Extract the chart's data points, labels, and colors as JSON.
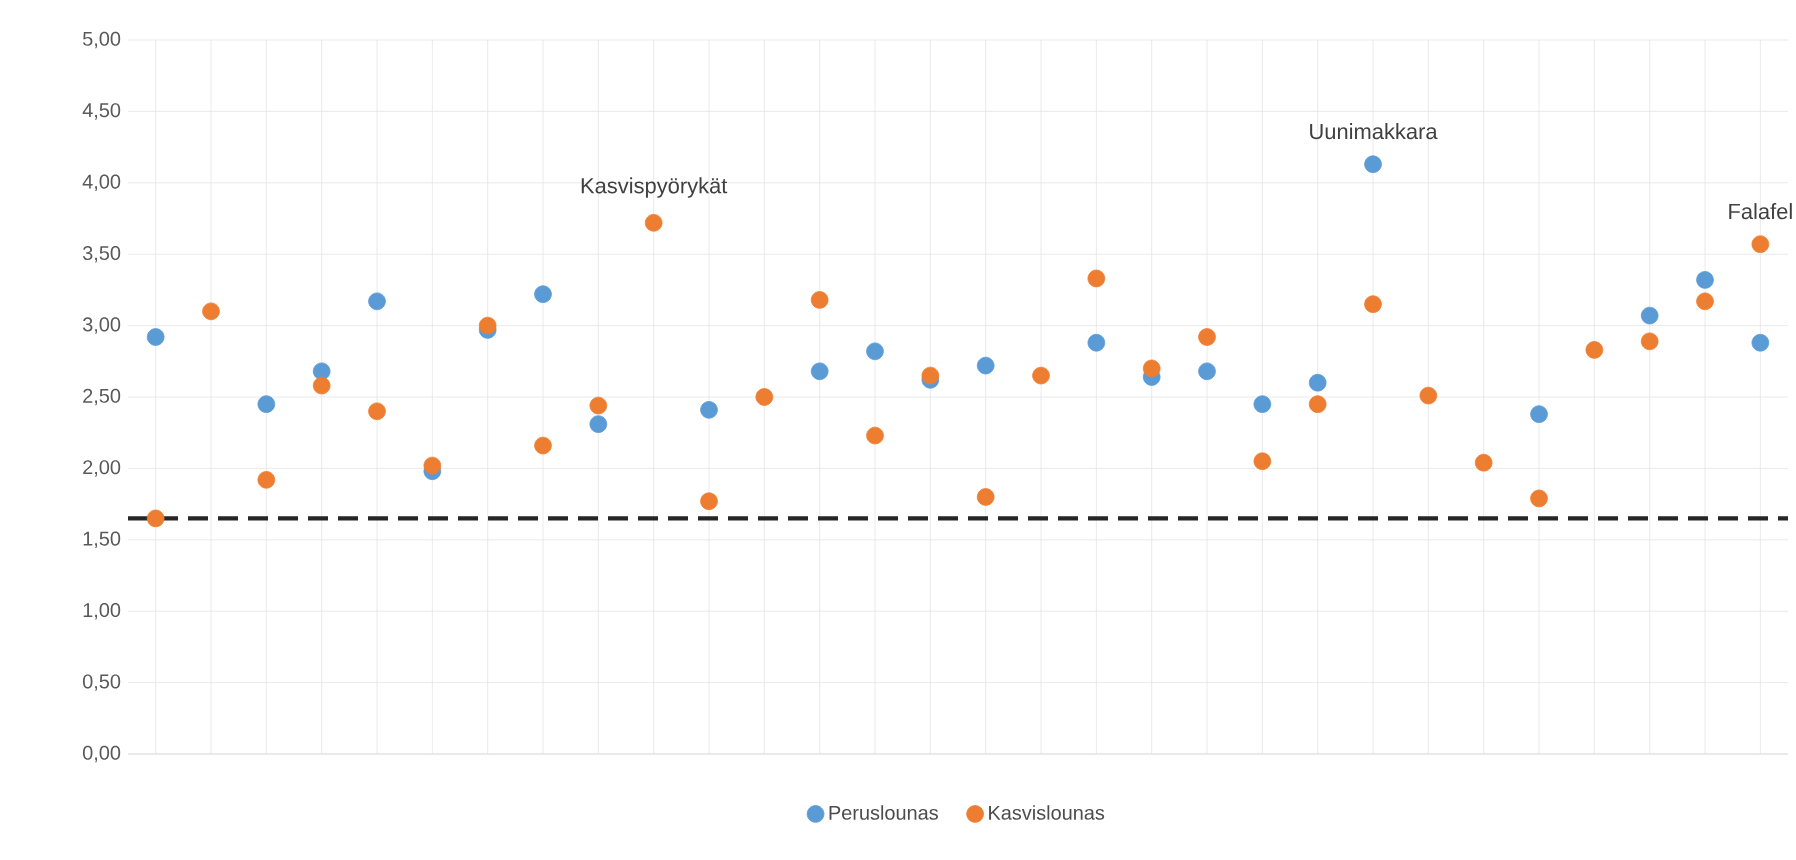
{
  "chart_data": {
    "type": "scatter",
    "categories": [
      null,
      null,
      null,
      null,
      null,
      null,
      null,
      null,
      null,
      null,
      null,
      null,
      null,
      null,
      null,
      null,
      null,
      null,
      null,
      null,
      null,
      null,
      null,
      null,
      null,
      null,
      null,
      null,
      null,
      null
    ],
    "series": [
      {
        "name": "Peruslounas",
        "color": "#5b9bd5",
        "values": [
          2.92,
          null,
          2.45,
          2.68,
          3.17,
          1.98,
          2.97,
          3.22,
          2.31,
          null,
          2.41,
          null,
          2.68,
          2.82,
          2.62,
          2.72,
          null,
          2.88,
          2.64,
          2.68,
          2.45,
          2.6,
          4.13,
          null,
          null,
          2.38,
          null,
          3.07,
          3.32,
          2.88
        ]
      },
      {
        "name": "Kasvislounas",
        "color": "#ed7d31",
        "values": [
          1.65,
          3.1,
          1.92,
          2.58,
          2.4,
          2.02,
          3.0,
          2.16,
          2.44,
          3.72,
          1.77,
          2.5,
          3.18,
          2.23,
          2.65,
          1.8,
          2.65,
          3.33,
          2.7,
          2.92,
          2.05,
          2.45,
          3.15,
          2.51,
          2.04,
          1.79,
          2.83,
          2.89,
          3.17,
          3.57
        ]
      }
    ],
    "ylim": [
      0,
      5
    ],
    "yticks": [
      {
        "value": 0,
        "label": "0,00"
      },
      {
        "value": 0.5,
        "label": "0,50"
      },
      {
        "value": 1,
        "label": "1,00"
      },
      {
        "value": 1.5,
        "label": "1,50"
      },
      {
        "value": 2,
        "label": "2,00"
      },
      {
        "value": 2.5,
        "label": "2,50"
      },
      {
        "value": 3,
        "label": "3,00"
      },
      {
        "value": 3.5,
        "label": "3,50"
      },
      {
        "value": 4,
        "label": "4,00"
      },
      {
        "value": 4.5,
        "label": "4,50"
      },
      {
        "value": 5,
        "label": "5,00"
      }
    ],
    "ref_lines": [
      {
        "axis": "y",
        "value": 1.65,
        "color": "#262626",
        "line_style": "dashed"
      }
    ],
    "annotations": [
      {
        "text": "Kasvispyörykät",
        "y": 3.72
      },
      {
        "text": "Uunimakkara",
        "y": 4.13
      },
      {
        "text": "Falafel",
        "y": 3.57
      }
    ],
    "grid": true,
    "legend": "bottom"
  }
}
